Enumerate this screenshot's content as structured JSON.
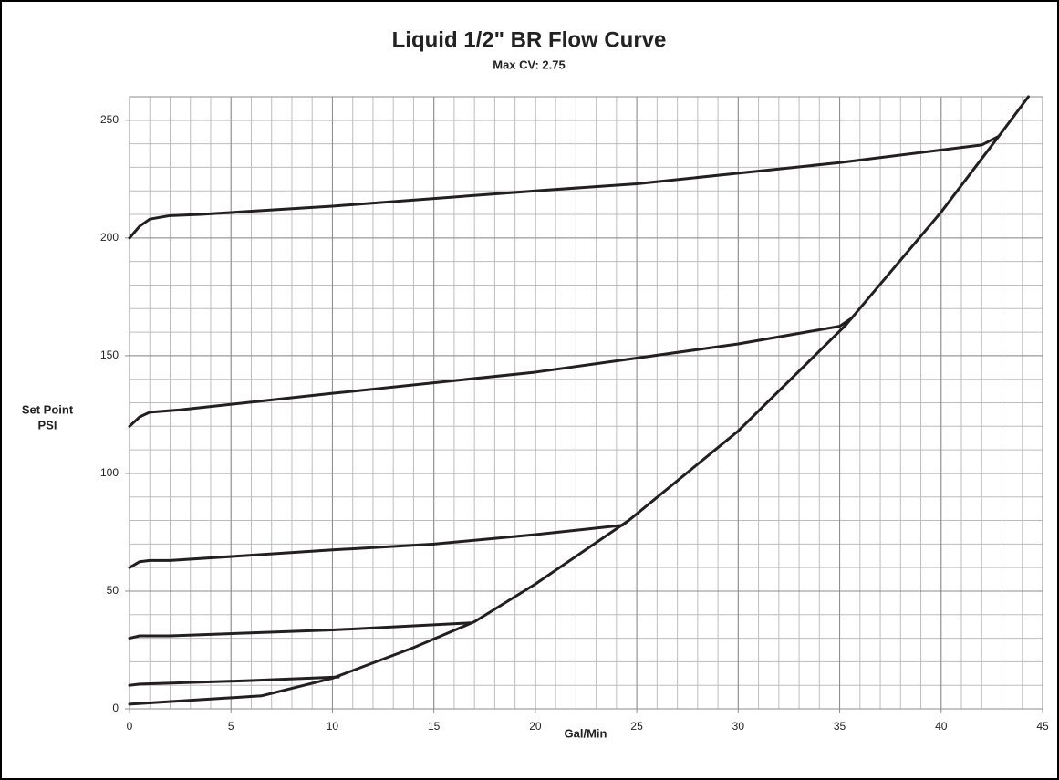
{
  "chart_data": {
    "type": "line",
    "title": "Liquid 1/2\" BR Flow Curve",
    "subtitle": "Max CV: 2.75",
    "xlabel": "Gal/Min",
    "ylabel": [
      "Set Point",
      "PSI"
    ],
    "xlim": [
      0,
      45
    ],
    "ylim": [
      0,
      260
    ],
    "xticks": [
      0,
      5,
      10,
      15,
      20,
      25,
      30,
      35,
      40,
      45
    ],
    "yticks": [
      0,
      50,
      100,
      150,
      200,
      250
    ],
    "grid": true,
    "x_minor_step": 1,
    "y_minor_step": 10,
    "series": [
      {
        "color": "#231f20",
        "x": [
          0,
          0.5,
          1,
          2,
          3.5,
          10,
          20,
          25,
          30,
          35,
          42,
          42.8
        ],
        "values": [
          200,
          205,
          208,
          209.5,
          210,
          213.5,
          220,
          223,
          227.5,
          232,
          239.5,
          243
        ]
      },
      {
        "color": "#231f20",
        "x": [
          0,
          0.5,
          1,
          2.5,
          10,
          20,
          25,
          30,
          35,
          35.6
        ],
        "values": [
          120,
          124,
          126,
          127,
          134,
          143,
          149,
          155,
          162.5,
          166
        ]
      },
      {
        "color": "#231f20",
        "x": [
          0,
          0.5,
          1,
          2,
          10,
          15,
          20,
          24.3,
          24.6
        ],
        "values": [
          60,
          62.5,
          63,
          63,
          67.5,
          70,
          74,
          78,
          80
        ]
      },
      {
        "color": "#231f20",
        "x": [
          0,
          0.5,
          2,
          10,
          16.8
        ],
        "values": [
          30,
          31,
          31,
          33.5,
          36.5
        ]
      },
      {
        "color": "#231f20",
        "x": [
          0,
          0.5,
          6,
          10.3
        ],
        "values": [
          10,
          10.5,
          12,
          13.5
        ]
      },
      {
        "color": "#231f20",
        "x": [
          0,
          6.5,
          10,
          14,
          17,
          20,
          24.6,
          30,
          35.3,
          40,
          43,
          44.3
        ],
        "values": [
          2,
          5.5,
          13,
          26,
          37,
          53,
          80,
          118,
          163,
          211,
          245,
          260
        ]
      }
    ]
  }
}
